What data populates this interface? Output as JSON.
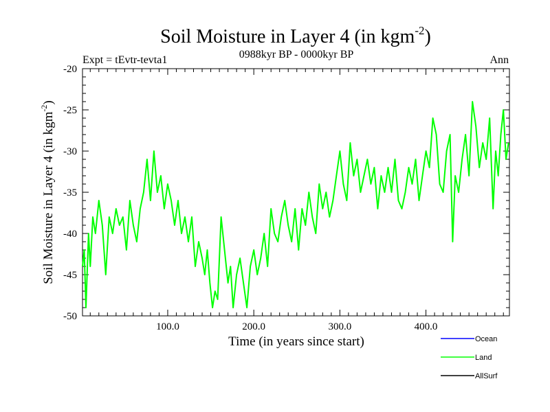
{
  "title": "Soil Moisture in Layer 4 (in kgm",
  "title_sup": "-2",
  "title_close": ")",
  "subtitle_left": "Expt = tEvtr-tevta1",
  "subtitle_center": "0988kyr BP - 0000kyr BP",
  "subtitle_right": "Ann",
  "chart_data": {
    "type": "line",
    "title": "Soil Moisture in Layer 4 (in kgm-2)",
    "xlabel": "Time (in years since start)",
    "ylabel": "Soil Moisture in Layer 4 (in kgm-2)",
    "ylabel_main": "Soil Moisture in Layer 4 (in kgm",
    "ylabel_sup": "-2",
    "ylabel_close": ")",
    "xlim": [
      1,
      497
    ],
    "ylim": [
      -50,
      -20
    ],
    "x_ticks": [
      100,
      200,
      300,
      400
    ],
    "x_tick_labels": [
      "100.0",
      "200.0",
      "300.0",
      "400.0"
    ],
    "y_ticks": [
      -20,
      -25,
      -30,
      -35,
      -40,
      -45,
      -50
    ],
    "y_tick_labels": [
      "-20",
      "-25",
      "-30",
      "-35",
      "-40",
      "-45",
      "-50"
    ],
    "legend_position": "bottom-right",
    "series": [
      {
        "name": "Ocean",
        "color": "#0000ff",
        "x": [],
        "values": []
      },
      {
        "name": "Land",
        "color": "#00ff00",
        "x": [
          1,
          3,
          5,
          8,
          10,
          13,
          16,
          20,
          24,
          28,
          32,
          36,
          40,
          44,
          48,
          52,
          56,
          60,
          64,
          68,
          72,
          76,
          80,
          84,
          88,
          92,
          96,
          100,
          104,
          108,
          112,
          116,
          120,
          124,
          128,
          132,
          136,
          140,
          143,
          146,
          149,
          152,
          155,
          158,
          162,
          166,
          170,
          173,
          176,
          180,
          184,
          188,
          192,
          196,
          200,
          204,
          208,
          212,
          216,
          220,
          224,
          228,
          232,
          236,
          240,
          244,
          248,
          252,
          256,
          260,
          264,
          268,
          272,
          276,
          280,
          284,
          288,
          292,
          296,
          300,
          304,
          308,
          312,
          316,
          320,
          324,
          328,
          332,
          336,
          340,
          344,
          348,
          352,
          356,
          360,
          364,
          368,
          372,
          376,
          380,
          384,
          388,
          392,
          396,
          400,
          404,
          408,
          412,
          416,
          420,
          424,
          428,
          431,
          434,
          438,
          442,
          446,
          450,
          454,
          458,
          462,
          466,
          470,
          474,
          478,
          481,
          484,
          487,
          490,
          493,
          496
        ],
        "values": [
          -44,
          -42,
          -49,
          -40,
          -44,
          -38,
          -40,
          -36,
          -39,
          -45,
          -38,
          -40,
          -37,
          -39,
          -38,
          -42,
          -36,
          -39,
          -41,
          -37,
          -35,
          -31,
          -36,
          -30,
          -35,
          -33,
          -37,
          -34,
          -36,
          -39,
          -36,
          -40,
          -38,
          -41,
          -38,
          -44,
          -41,
          -43,
          -45,
          -42,
          -46,
          -49,
          -47,
          -48,
          -38,
          -42,
          -46,
          -44,
          -49,
          -45,
          -43,
          -46,
          -49,
          -44,
          -42,
          -45,
          -43,
          -40,
          -44,
          -37,
          -40,
          -41,
          -38,
          -36,
          -39,
          -41,
          -37,
          -42,
          -37,
          -39,
          -35,
          -38,
          -40,
          -34,
          -37,
          -35,
          -38,
          -36,
          -33,
          -30,
          -34,
          -36,
          -29,
          -33,
          -31,
          -35,
          -33,
          -31,
          -34,
          -32,
          -37,
          -33,
          -35,
          -32,
          -35,
          -31,
          -36,
          -37,
          -35,
          -32,
          -34,
          -31,
          -36,
          -33,
          -30,
          -32,
          -26,
          -28,
          -34,
          -35,
          -30,
          -28,
          -41,
          -33,
          -35,
          -31,
          -28,
          -33,
          -24,
          -27,
          -32,
          -29,
          -31,
          -26,
          -37,
          -30,
          -33,
          -28,
          -25,
          -31,
          -29
        ]
      },
      {
        "name": "AllSurf",
        "color": "#000000",
        "x": [],
        "values": []
      }
    ]
  }
}
